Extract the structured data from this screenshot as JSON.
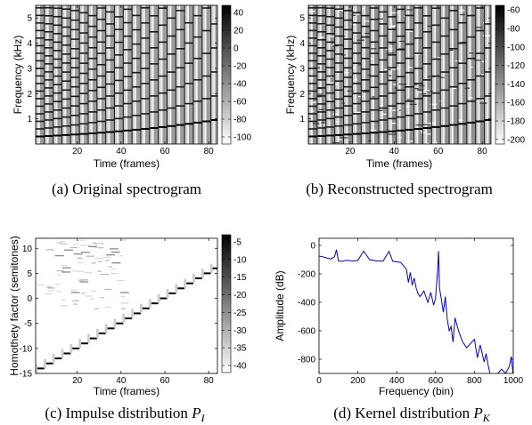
{
  "figure": {
    "panels": [
      {
        "caption": "(a) Original spectrogram"
      },
      {
        "caption": "(b) Reconstructed spectrogram"
      },
      {
        "caption_text": "(c) Impulse distribution ",
        "caption_symbol": "P",
        "caption_sub": "I"
      },
      {
        "caption_text": "(d) Kernel distribution ",
        "caption_symbol": "P",
        "caption_sub": "K"
      }
    ]
  },
  "chart_data": [
    {
      "type": "heatmap",
      "title": "",
      "xlabel": "Time (frames)",
      "ylabel": "Frequency (kHz)",
      "xlim": [
        1,
        84
      ],
      "ylim": [
        0,
        5.5
      ],
      "xticks": [
        20,
        40,
        60,
        80
      ],
      "yticks": [
        1,
        2,
        3,
        4,
        5
      ],
      "colorbar": {
        "ticks": [
          40,
          20,
          0,
          -20,
          -40,
          -60,
          -80,
          -100
        ],
        "range": [
          -108,
          48
        ],
        "colormap": "gray"
      },
      "notes": "Harmonic tones ascending one semitone every 4 frames; fundamental rises from about 0.3 kHz to 1.75 kHz"
    },
    {
      "type": "heatmap",
      "title": "",
      "xlabel": "Time (frames)",
      "ylabel": "Frequency (kHz)",
      "xlim": [
        1,
        84
      ],
      "ylim": [
        0,
        5.5
      ],
      "xticks": [
        20,
        40,
        60,
        80
      ],
      "yticks": [
        1,
        2,
        3,
        4,
        5
      ],
      "colorbar": {
        "ticks": [
          -60,
          -80,
          -100,
          -120,
          -140,
          -160,
          -180,
          -200
        ],
        "range": [
          -205,
          -55
        ],
        "colormap": "gray"
      }
    },
    {
      "type": "heatmap",
      "title": "",
      "xlabel": "Time (frames)",
      "ylabel": "Homothety factor (semitones)",
      "xlim": [
        1,
        84
      ],
      "ylim": [
        -15,
        12
      ],
      "xticks": [
        20,
        40,
        60,
        80
      ],
      "yticks": [
        -15,
        -10,
        -5,
        0,
        5,
        10
      ],
      "colorbar": {
        "ticks": [
          -5,
          -10,
          -15,
          -20,
          -25,
          -30,
          -35,
          -40
        ],
        "range": [
          -42,
          -3
        ],
        "colormap": "gray"
      },
      "steps": {
        "x_start": [
          1,
          5,
          9,
          13,
          17,
          21,
          25,
          29,
          33,
          37,
          41,
          45,
          49,
          53,
          57,
          61,
          65,
          69,
          73,
          77,
          81
        ],
        "y": [
          -14,
          -13,
          -12,
          -11,
          -10,
          -9,
          -8,
          -7,
          -6,
          -5,
          -4,
          -3,
          -2,
          -1,
          0,
          1,
          2,
          3,
          4,
          5,
          6
        ]
      }
    },
    {
      "type": "line",
      "title": "",
      "xlabel": "Frequency (bin)",
      "ylabel": "Amplitude (dB)",
      "xlim": [
        0,
        1000
      ],
      "ylim": [
        -900,
        50
      ],
      "xticks": [
        0,
        200,
        400,
        600,
        800,
        1000
      ],
      "yticks": [
        0,
        -200,
        -400,
        -600,
        -800
      ],
      "series": [
        {
          "color": "#0000dd",
          "x": [
            0,
            20,
            40,
            60,
            80,
            90,
            100,
            120,
            140,
            160,
            180,
            200,
            230,
            260,
            300,
            330,
            360,
            380,
            400,
            420,
            440,
            450,
            460,
            470,
            480,
            490,
            500,
            510,
            520,
            540,
            560,
            575,
            590,
            600,
            610,
            615,
            620,
            630,
            640,
            650,
            660,
            670,
            680,
            690,
            700,
            710,
            720,
            740,
            760,
            780,
            800,
            815,
            830,
            840,
            850,
            860,
            870,
            880,
            900,
            920,
            940,
            960,
            980,
            990,
            1000
          ],
          "y": [
            -75,
            -80,
            -88,
            -95,
            -80,
            -30,
            -110,
            -112,
            -105,
            -108,
            -110,
            -105,
            -40,
            -100,
            -110,
            -110,
            -42,
            -112,
            -115,
            -120,
            -150,
            -170,
            -260,
            -190,
            -280,
            -230,
            -300,
            -340,
            -360,
            -320,
            -400,
            -330,
            -420,
            -370,
            -180,
            -40,
            -300,
            -380,
            -470,
            -360,
            -520,
            -600,
            -570,
            -680,
            -510,
            -560,
            -610,
            -680,
            -720,
            -690,
            -660,
            -790,
            -700,
            -760,
            -820,
            -760,
            -840,
            -900,
            -920,
            -900,
            -870,
            -900,
            -850,
            -780,
            -920
          ]
        }
      ]
    }
  ]
}
